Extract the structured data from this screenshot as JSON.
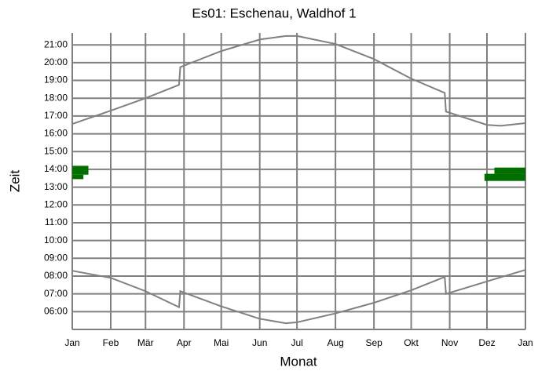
{
  "chart_data": {
    "type": "line",
    "title": "Es01: Eschenau, Waldhof 1",
    "x_label": "Monat",
    "y_label": "Zeit",
    "xlim": [
      0,
      365
    ],
    "xticks": [
      {
        "value": 0,
        "label": "Jan"
      },
      {
        "value": 31,
        "label": "Feb"
      },
      {
        "value": 59,
        "label": "Mär"
      },
      {
        "value": 90,
        "label": "Apr"
      },
      {
        "value": 120,
        "label": "Mai"
      },
      {
        "value": 151,
        "label": "Jun"
      },
      {
        "value": 181,
        "label": "Jul"
      },
      {
        "value": 212,
        "label": "Aug"
      },
      {
        "value": 243,
        "label": "Sep"
      },
      {
        "value": 273,
        "label": "Okt"
      },
      {
        "value": 304,
        "label": "Nov"
      },
      {
        "value": 334,
        "label": "Dez"
      },
      {
        "value": 365,
        "label": "Jan"
      }
    ],
    "ylim": [
      5,
      21.67
    ],
    "yticks": [
      {
        "value": 6,
        "label": "06:00"
      },
      {
        "value": 7,
        "label": "07:00"
      },
      {
        "value": 8,
        "label": "08:00"
      },
      {
        "value": 9,
        "label": "09:00"
      },
      {
        "value": 10,
        "label": "10:00"
      },
      {
        "value": 11,
        "label": "11:00"
      },
      {
        "value": 12,
        "label": "12:00"
      },
      {
        "value": 13,
        "label": "13:00"
      },
      {
        "value": 14,
        "label": "14:00"
      },
      {
        "value": 15,
        "label": "15:00"
      },
      {
        "value": 16,
        "label": "16:00"
      },
      {
        "value": 17,
        "label": "17:00"
      },
      {
        "value": 18,
        "label": "18:00"
      },
      {
        "value": 19,
        "label": "19:00"
      },
      {
        "value": 20,
        "label": "20:00"
      },
      {
        "value": 21,
        "label": "21:00"
      }
    ],
    "grid": true,
    "series": [
      {
        "color": "#808080",
        "x": [
          0,
          31,
          59,
          86,
          87,
          120,
          151,
          172,
          181,
          212,
          243,
          273,
          300,
          301,
          334,
          345,
          365
        ],
        "values": [
          16.55,
          17.3,
          18.0,
          18.75,
          19.75,
          20.65,
          21.3,
          21.5,
          21.5,
          21.05,
          20.2,
          19.1,
          18.3,
          17.25,
          16.5,
          16.45,
          16.6
        ]
      },
      {
        "color": "#808080",
        "x": [
          0,
          31,
          59,
          86,
          87,
          120,
          151,
          172,
          181,
          212,
          243,
          273,
          300,
          301,
          334,
          365
        ],
        "values": [
          8.3,
          7.9,
          7.15,
          6.25,
          7.15,
          6.3,
          5.6,
          5.35,
          5.4,
          5.9,
          6.5,
          7.2,
          7.95,
          7.0,
          7.7,
          8.35
        ]
      }
    ],
    "shadow_color": "#006f00",
    "shadows": [
      {
        "x": [
          0,
          13
        ],
        "y": [
          13.7,
          14.2
        ]
      },
      {
        "x": [
          0,
          9
        ],
        "y": [
          13.45,
          13.7
        ]
      },
      {
        "x": [
          340,
          365
        ],
        "y": [
          13.75,
          14.1
        ]
      },
      {
        "x": [
          332,
          365
        ],
        "y": [
          13.35,
          13.75
        ]
      }
    ]
  }
}
